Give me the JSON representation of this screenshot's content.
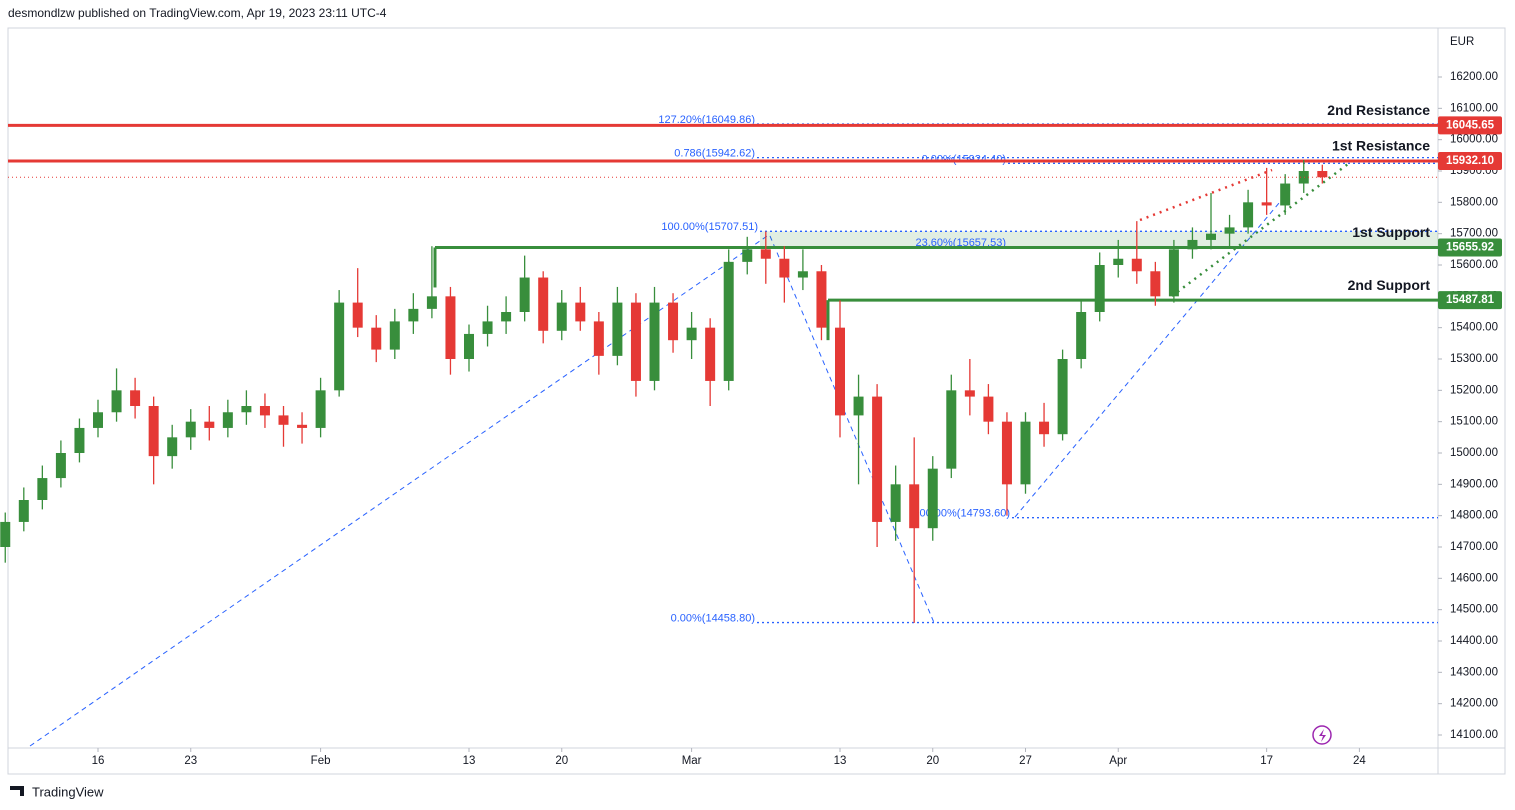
{
  "chart_data": {
    "type": "candlestick",
    "title": "desmondlzw published on TradingView.com, Apr 19, 2023 23:11 UTC-4",
    "currency": "EUR",
    "brand": "TradingView",
    "up_color": "#388e3c",
    "down_color": "#e53935",
    "ylim": [
      14050,
      16300
    ],
    "yticks": [
      {
        "value": 14100,
        "label": "14100.00"
      },
      {
        "value": 14200,
        "label": "14200.00"
      },
      {
        "value": 14300,
        "label": "14300.00"
      },
      {
        "value": 14400,
        "label": "14400.00"
      },
      {
        "value": 14500,
        "label": "14500.00"
      },
      {
        "value": 14600,
        "label": "14600.00"
      },
      {
        "value": 14700,
        "label": "14700.00"
      },
      {
        "value": 14800,
        "label": "14800.00"
      },
      {
        "value": 14900,
        "label": "14900.00"
      },
      {
        "value": 15000,
        "label": "15000.00"
      },
      {
        "value": 15100,
        "label": "15100.00"
      },
      {
        "value": 15200,
        "label": "15200.00"
      },
      {
        "value": 15300,
        "label": "15300.00"
      },
      {
        "value": 15400,
        "label": "15400.00"
      },
      {
        "value": 15500,
        "label": "15500.00"
      },
      {
        "value": 15600,
        "label": "15600.00"
      },
      {
        "value": 15700,
        "label": "15700.00"
      },
      {
        "value": 15800,
        "label": "15800.00"
      },
      {
        "value": 15900,
        "label": "15900.00"
      },
      {
        "value": 16000,
        "label": "16000.00"
      },
      {
        "value": 16100,
        "label": "16100.00"
      },
      {
        "value": 16200,
        "label": "16200.00"
      }
    ],
    "xticks": [
      {
        "value": 5,
        "label": "16"
      },
      {
        "value": 10,
        "label": "23"
      },
      {
        "value": 17,
        "label": "Feb"
      },
      {
        "value": 25,
        "label": "13"
      },
      {
        "value": 30,
        "label": "20"
      },
      {
        "value": 37,
        "label": "Mar"
      },
      {
        "value": 45,
        "label": "13"
      },
      {
        "value": 50,
        "label": "20"
      },
      {
        "value": 55,
        "label": "27"
      },
      {
        "value": 60,
        "label": "Apr"
      },
      {
        "value": 68,
        "label": "17"
      },
      {
        "value": 73,
        "label": "24"
      }
    ],
    "ohlc": [
      [
        14700,
        14810,
        14650,
        14780
      ],
      [
        14780,
        14890,
        14750,
        14850
      ],
      [
        14850,
        14960,
        14820,
        14920
      ],
      [
        14920,
        15040,
        14890,
        15000
      ],
      [
        15000,
        15110,
        14970,
        15080
      ],
      [
        15080,
        15170,
        15050,
        15130
      ],
      [
        15130,
        15270,
        15100,
        15200
      ],
      [
        15200,
        15240,
        15110,
        15150
      ],
      [
        15150,
        15180,
        14900,
        14990
      ],
      [
        14990,
        15090,
        14950,
        15050
      ],
      [
        15050,
        15140,
        15010,
        15100
      ],
      [
        15100,
        15150,
        15040,
        15080
      ],
      [
        15080,
        15170,
        15050,
        15130
      ],
      [
        15130,
        15200,
        15090,
        15150
      ],
      [
        15150,
        15190,
        15080,
        15120
      ],
      [
        15120,
        15150,
        15020,
        15090
      ],
      [
        15090,
        15130,
        15030,
        15080
      ],
      [
        15080,
        15240,
        15050,
        15200
      ],
      [
        15200,
        15520,
        15180,
        15480
      ],
      [
        15480,
        15590,
        15370,
        15400
      ],
      [
        15400,
        15440,
        15290,
        15330
      ],
      [
        15330,
        15460,
        15300,
        15420
      ],
      [
        15420,
        15510,
        15380,
        15460
      ],
      [
        15460,
        15660,
        15430,
        15500
      ],
      [
        15500,
        15530,
        15250,
        15300
      ],
      [
        15300,
        15410,
        15260,
        15380
      ],
      [
        15380,
        15470,
        15340,
        15420
      ],
      [
        15420,
        15500,
        15380,
        15450
      ],
      [
        15450,
        15630,
        15420,
        15560
      ],
      [
        15560,
        15580,
        15350,
        15390
      ],
      [
        15390,
        15520,
        15360,
        15480
      ],
      [
        15480,
        15530,
        15390,
        15420
      ],
      [
        15420,
        15450,
        15250,
        15310
      ],
      [
        15310,
        15530,
        15280,
        15480
      ],
      [
        15480,
        15510,
        15180,
        15230
      ],
      [
        15230,
        15530,
        15200,
        15480
      ],
      [
        15480,
        15510,
        15320,
        15360
      ],
      [
        15360,
        15450,
        15300,
        15400
      ],
      [
        15400,
        15430,
        15150,
        15230
      ],
      [
        15230,
        15650,
        15200,
        15610
      ],
      [
        15610,
        15690,
        15570,
        15650
      ],
      [
        15650,
        15707,
        15540,
        15620
      ],
      [
        15620,
        15660,
        15480,
        15560
      ],
      [
        15560,
        15650,
        15520,
        15580
      ],
      [
        15580,
        15600,
        15360,
        15400
      ],
      [
        15400,
        15487,
        15050,
        15120
      ],
      [
        15120,
        15250,
        14900,
        15180
      ],
      [
        15180,
        15220,
        14700,
        14780
      ],
      [
        14780,
        14960,
        14720,
        14900
      ],
      [
        14900,
        15050,
        14458,
        14760
      ],
      [
        14760,
        14990,
        14720,
        14950
      ],
      [
        14950,
        15250,
        14920,
        15200
      ],
      [
        15200,
        15300,
        15120,
        15180
      ],
      [
        15180,
        15220,
        15060,
        15100
      ],
      [
        15100,
        15130,
        14800,
        14900
      ],
      [
        14900,
        15130,
        14870,
        15100
      ],
      [
        15100,
        15160,
        15020,
        15060
      ],
      [
        15060,
        15330,
        15040,
        15300
      ],
      [
        15300,
        15490,
        15270,
        15450
      ],
      [
        15450,
        15640,
        15420,
        15600
      ],
      [
        15600,
        15680,
        15560,
        15620
      ],
      [
        15620,
        15740,
        15540,
        15580
      ],
      [
        15580,
        15610,
        15470,
        15500
      ],
      [
        15500,
        15680,
        15480,
        15650
      ],
      [
        15650,
        15720,
        15620,
        15680
      ],
      [
        15680,
        15830,
        15650,
        15700
      ],
      [
        15700,
        15760,
        15660,
        15720
      ],
      [
        15720,
        15840,
        15700,
        15800
      ],
      [
        15800,
        15910,
        15760,
        15790
      ],
      [
        15790,
        15890,
        15760,
        15860
      ],
      [
        15860,
        15935,
        15830,
        15900
      ],
      [
        15900,
        15920,
        15860,
        15880
      ]
    ],
    "levels": [
      {
        "name": "2nd Resistance",
        "value": 16045.65,
        "label": "16045.65",
        "color": "#e53935"
      },
      {
        "name": "1st Resistance",
        "value": 15932.1,
        "label": "15932.10",
        "color": "#e53935"
      },
      {
        "name": "1st Support",
        "value": 15655.92,
        "label": "15655.92",
        "color": "#388e3c"
      },
      {
        "name": "2nd Support",
        "value": 15487.81,
        "label": "15487.81",
        "color": "#388e3c"
      }
    ],
    "fib_levels": [
      {
        "label": "127.20%(16049.86)",
        "value": 16049.86
      },
      {
        "label": "0.786(15942.62)",
        "value": 15942.62
      },
      {
        "label": "0.00%(15924.40)",
        "value": 15924.4
      },
      {
        "label": "100.00%(15707.51)",
        "value": 15707.51
      },
      {
        "label": "23.60%(15657.53)",
        "value": 15657.53
      },
      {
        "label": "100.00%(14793.60)",
        "value": 14793.6
      },
      {
        "label": "0.00%(14458.80)",
        "value": 14458.8
      }
    ]
  }
}
